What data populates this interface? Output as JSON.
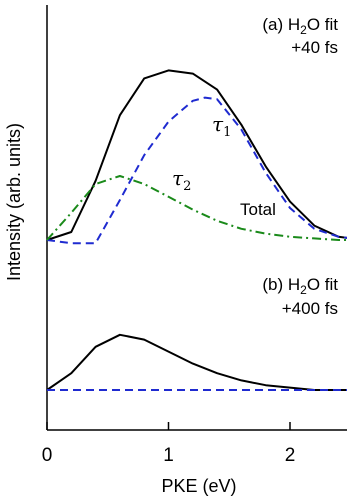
{
  "chart_data": [
    {
      "panel": "(a)",
      "type": "line",
      "annotation_lines": [
        "(a) H2O fit",
        "+40 fs"
      ],
      "xlabel": "PKE (eV)",
      "ylabel": "Intensity (arb. units)",
      "xlim": [
        0,
        2.5
      ],
      "xticks": [
        0,
        1,
        2
      ],
      "series": [
        {
          "name": "Total",
          "style": "solid",
          "color": "#000000",
          "x": [
            0,
            0.2,
            0.4,
            0.6,
            0.8,
            1.0,
            1.2,
            1.4,
            1.6,
            1.8,
            2.0,
            2.2,
            2.4,
            2.5
          ],
          "y": [
            0.0,
            0.05,
            0.37,
            0.78,
            1.01,
            1.06,
            1.04,
            0.94,
            0.72,
            0.46,
            0.24,
            0.09,
            0.02,
            0.01
          ]
        },
        {
          "name": "τ1",
          "style": "dashed",
          "color": "#1f2bd0",
          "x": [
            0,
            0.2,
            0.4,
            0.6,
            0.8,
            1.0,
            1.2,
            1.3,
            1.4,
            1.6,
            1.8,
            2.0,
            2.2,
            2.4,
            2.5
          ],
          "y": [
            0.0,
            -0.02,
            -0.02,
            0.25,
            0.53,
            0.74,
            0.87,
            0.89,
            0.88,
            0.69,
            0.42,
            0.2,
            0.07,
            0.02,
            0.01
          ]
        },
        {
          "name": "τ2",
          "style": "dashdot",
          "color": "#1a8a1a",
          "x": [
            0,
            0.2,
            0.4,
            0.6,
            0.8,
            1.0,
            1.2,
            1.4,
            1.6,
            1.8,
            2.0,
            2.2,
            2.4,
            2.5
          ],
          "y": [
            0.0,
            0.17,
            0.35,
            0.4,
            0.35,
            0.27,
            0.19,
            0.12,
            0.07,
            0.04,
            0.02,
            0.01,
            0.0,
            0.0
          ]
        }
      ],
      "labels": [
        {
          "text": "τ",
          "sub": "1",
          "series": "τ1"
        },
        {
          "text": "τ",
          "sub": "2",
          "series": "τ2"
        },
        {
          "text": "Total",
          "series": "Total"
        }
      ]
    },
    {
      "panel": "(b)",
      "type": "line",
      "annotation_lines": [
        "(b) H2O fit",
        "+400 fs"
      ],
      "series": [
        {
          "name": "Total",
          "style": "solid",
          "color": "#000000",
          "x": [
            0,
            0.2,
            0.4,
            0.6,
            0.8,
            1.0,
            1.2,
            1.4,
            1.6,
            1.8,
            2.0,
            2.2,
            2.5
          ],
          "y": [
            0.0,
            0.07,
            0.18,
            0.23,
            0.21,
            0.16,
            0.11,
            0.07,
            0.04,
            0.02,
            0.01,
            0.0,
            0.0
          ]
        },
        {
          "name": "τ1",
          "style": "dashed",
          "color": "#1f2bd0",
          "x": [
            0,
            2.5
          ],
          "y": [
            0.0,
            0.0
          ]
        }
      ]
    }
  ]
}
